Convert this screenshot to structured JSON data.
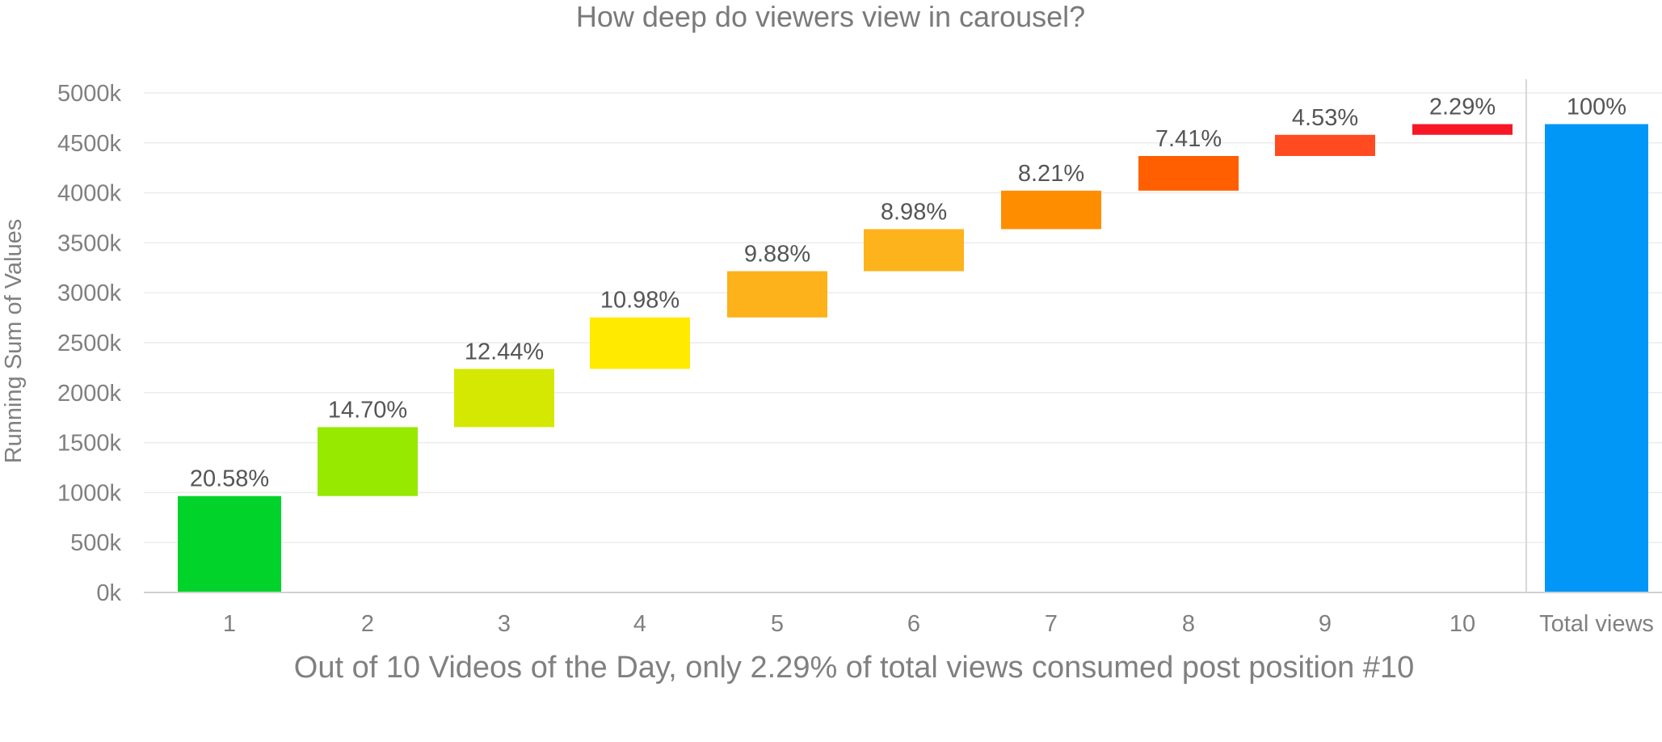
{
  "chart_data": {
    "type": "bar",
    "subtype": "waterfall",
    "title": "How deep do viewers view in carousel?",
    "xlabel": "Out of 10 Videos of the Day, only 2.29% of total views consumed post position #10",
    "ylabel": "Running Sum of Values",
    "categories": [
      "1",
      "2",
      "3",
      "4",
      "5",
      "6",
      "7",
      "8",
      "9",
      "10",
      "Total views"
    ],
    "series": [
      {
        "values": [
          965,
          690,
          583,
          515,
          463,
          421,
          385,
          347,
          212,
          107,
          4688
        ],
        "data_labels": [
          "20.58%",
          "14.70%",
          "12.44%",
          "10.98%",
          "9.88%",
          "8.98%",
          "8.21%",
          "7.41%",
          "4.53%",
          "2.29%",
          "100%"
        ],
        "colors": [
          "#02d32a",
          "#97e900",
          "#d4e802",
          "#ffea00",
          "#fdb11a",
          "#fdb31b",
          "#ff8d00",
          "#ff5f00",
          "#ff4b1f",
          "#f71826",
          "#0197f6"
        ]
      }
    ],
    "ylim": [
      0,
      5000
    ],
    "yticks": [
      "0k",
      "500k",
      "1000k",
      "1500k",
      "2000k",
      "2500k",
      "3000k",
      "3500k",
      "4000k",
      "4500k",
      "5000k"
    ],
    "grid": true,
    "legend": "none"
  }
}
